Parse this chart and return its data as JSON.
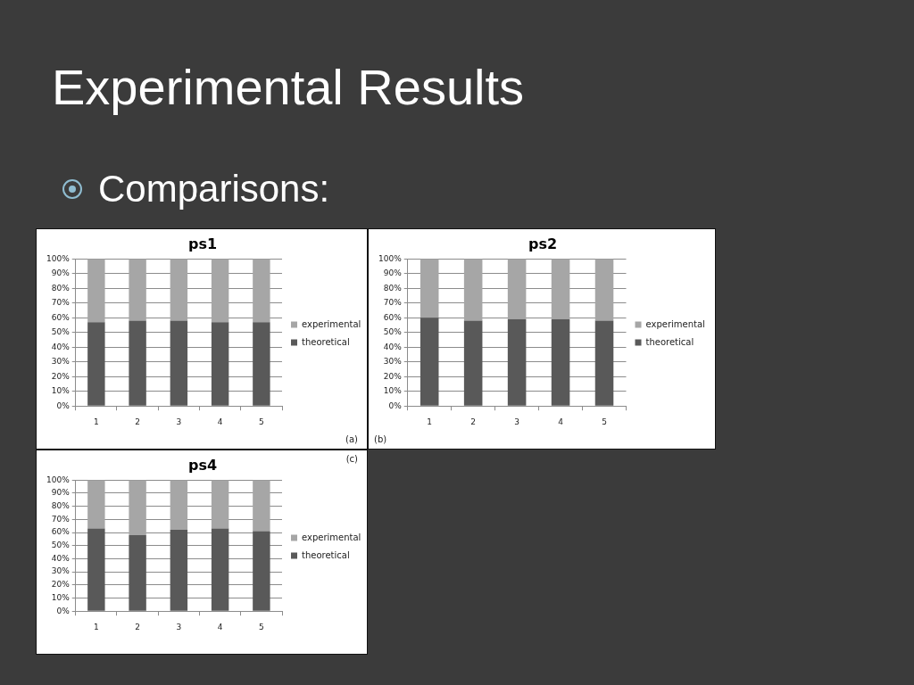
{
  "chart_data": [
    {
      "type": "other",
      "title": "Experimental Results",
      "annotations": [
        "Comparisons:"
      ]
    },
    {
      "type": "bar",
      "title": "ps1",
      "categories": [
        "1",
        "2",
        "3",
        "4",
        "5"
      ],
      "stacked": true,
      "series": [
        {
          "name": "theoretical",
          "color": "#595959",
          "values": [
            57,
            58,
            58,
            57,
            57
          ]
        },
        {
          "name": "experimental",
          "color": "#a6a6a6",
          "values": [
            43,
            42,
            42,
            43,
            43
          ]
        }
      ],
      "ylim": [
        0,
        100
      ],
      "yticks": [
        {
          "value": 0,
          "label": "0%"
        },
        {
          "value": 10,
          "label": "10%"
        },
        {
          "value": 20,
          "label": "20%"
        },
        {
          "value": 30,
          "label": "30%"
        },
        {
          "value": 40,
          "label": "40%"
        },
        {
          "value": 50,
          "label": "50%"
        },
        {
          "value": 60,
          "label": "60%"
        },
        {
          "value": 70,
          "label": "70%"
        },
        {
          "value": 80,
          "label": "80%"
        },
        {
          "value": 90,
          "label": "90%"
        },
        {
          "value": 100,
          "label": "100%"
        }
      ],
      "grid": "y",
      "legend": "right",
      "annotations": [
        "(a)"
      ]
    },
    {
      "type": "bar",
      "title": "ps2",
      "categories": [
        "1",
        "2",
        "3",
        "4",
        "5"
      ],
      "stacked": true,
      "series": [
        {
          "name": "theoretical",
          "color": "#595959",
          "values": [
            60,
            58,
            59,
            59,
            58
          ]
        },
        {
          "name": "experimental",
          "color": "#a6a6a6",
          "values": [
            40,
            42,
            41,
            41,
            42
          ]
        }
      ],
      "ylim": [
        0,
        100
      ],
      "yticks": [
        {
          "value": 0,
          "label": "0%"
        },
        {
          "value": 10,
          "label": "10%"
        },
        {
          "value": 20,
          "label": "20%"
        },
        {
          "value": 30,
          "label": "30%"
        },
        {
          "value": 40,
          "label": "40%"
        },
        {
          "value": 50,
          "label": "50%"
        },
        {
          "value": 60,
          "label": "60%"
        },
        {
          "value": 70,
          "label": "70%"
        },
        {
          "value": 80,
          "label": "80%"
        },
        {
          "value": 90,
          "label": "90%"
        },
        {
          "value": 100,
          "label": "100%"
        }
      ],
      "grid": "y",
      "legend": "right",
      "annotations": [
        "(b)"
      ]
    },
    {
      "type": "bar",
      "title": "ps4",
      "categories": [
        "1",
        "2",
        "3",
        "4",
        "5"
      ],
      "stacked": true,
      "series": [
        {
          "name": "theoretical",
          "color": "#595959",
          "values": [
            63,
            58,
            62,
            63,
            61
          ]
        },
        {
          "name": "experimental",
          "color": "#a6a6a6",
          "values": [
            37,
            42,
            38,
            37,
            39
          ]
        }
      ],
      "ylim": [
        0,
        100
      ],
      "yticks": [
        {
          "value": 0,
          "label": "0%"
        },
        {
          "value": 10,
          "label": "10%"
        },
        {
          "value": 20,
          "label": "20%"
        },
        {
          "value": 30,
          "label": "30%"
        },
        {
          "value": 40,
          "label": "40%"
        },
        {
          "value": 50,
          "label": "50%"
        },
        {
          "value": 60,
          "label": "60%"
        },
        {
          "value": 70,
          "label": "70%"
        },
        {
          "value": 80,
          "label": "80%"
        },
        {
          "value": 90,
          "label": "90%"
        },
        {
          "value": 100,
          "label": "100%"
        }
      ],
      "grid": "y",
      "legend": "right",
      "annotations": [
        "(c)"
      ]
    }
  ]
}
